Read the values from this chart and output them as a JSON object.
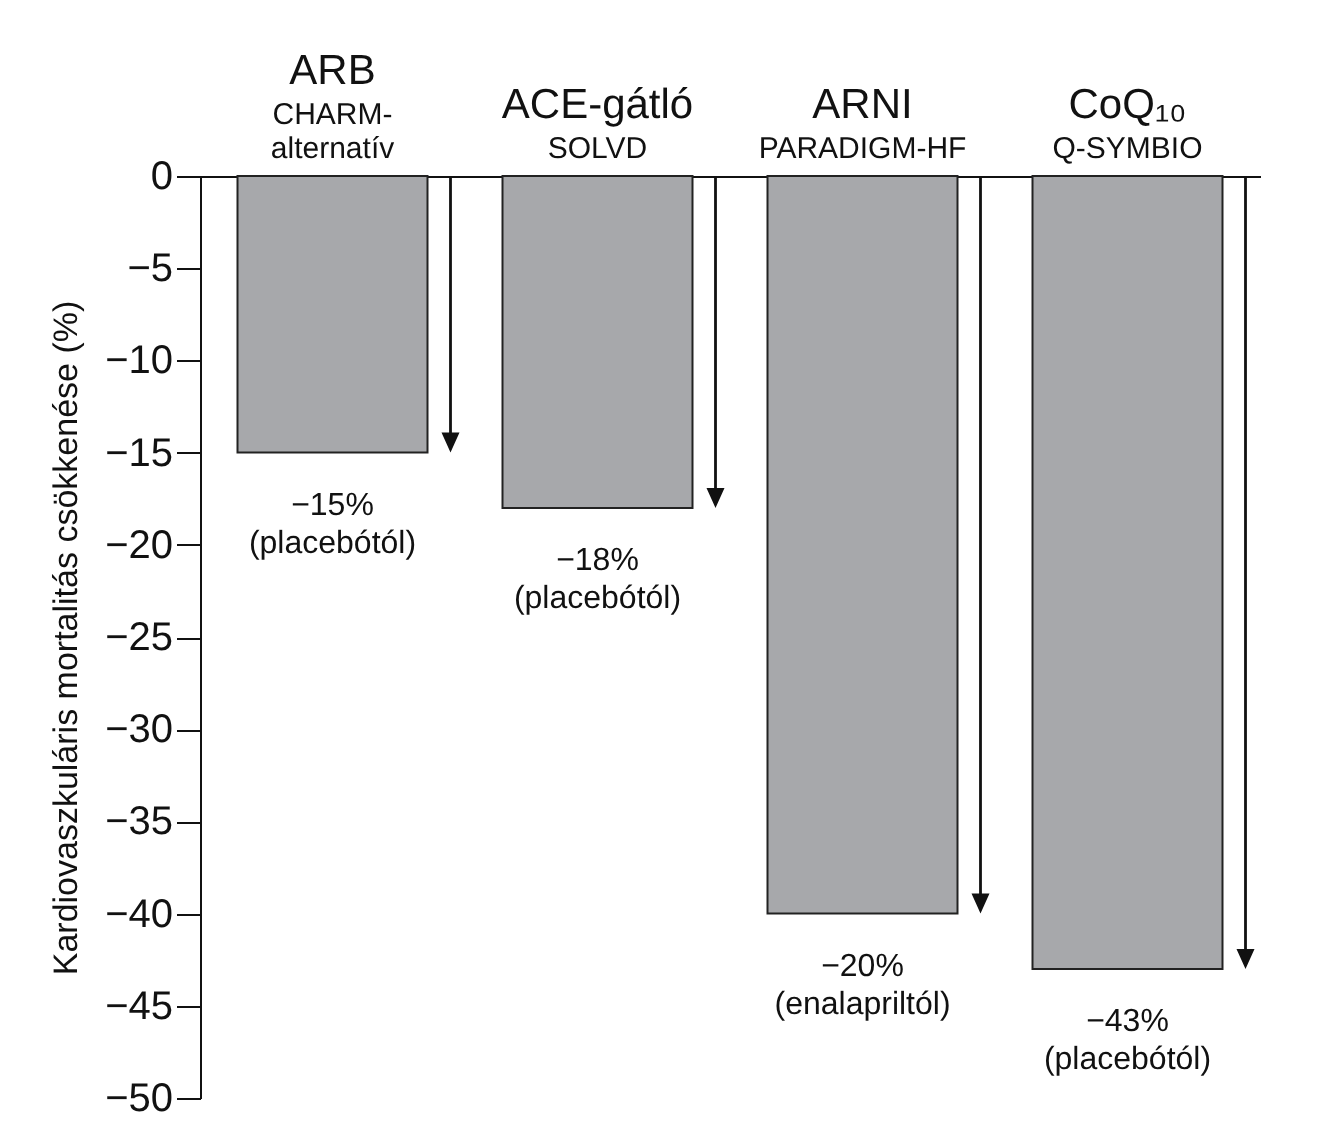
{
  "chart_data": {
    "type": "bar",
    "ylabel": "Kardiovaszkuláris mortalitás csökkenése (%)",
    "categories": [
      "ARB\nCHARM-\nalternatív",
      "ACE-gátló\nSOLVD",
      "ARNI\nPARADIGM-HF",
      "CoQ₁₀\nQ-SYMBIO"
    ],
    "values": [
      -15,
      -18,
      -40,
      -43
    ],
    "color": "#a7a8ab",
    "ylim": [
      -50,
      0
    ],
    "yticks": [
      0,
      -5,
      -10,
      -15,
      -20,
      -25,
      -30,
      -35,
      -40,
      -45,
      -50
    ],
    "grid": false,
    "annotations": [
      {
        "text": "−15%\n(placebótól)",
        "x": "ARB\nCHARM-\nalternatív",
        "y": -15
      },
      {
        "text": "−18%\n(placebótól)",
        "x": "ACE-gátló\nSOLVD",
        "y": -18
      },
      {
        "text": "−20%\n(enalapriltól)",
        "x": "ARNI\nPARADIGM-HF",
        "y": -40
      },
      {
        "text": "−43%\n(placebótól)",
        "x": "CoQ₁₀\nQ-SYMBIO",
        "y": -43
      }
    ]
  }
}
